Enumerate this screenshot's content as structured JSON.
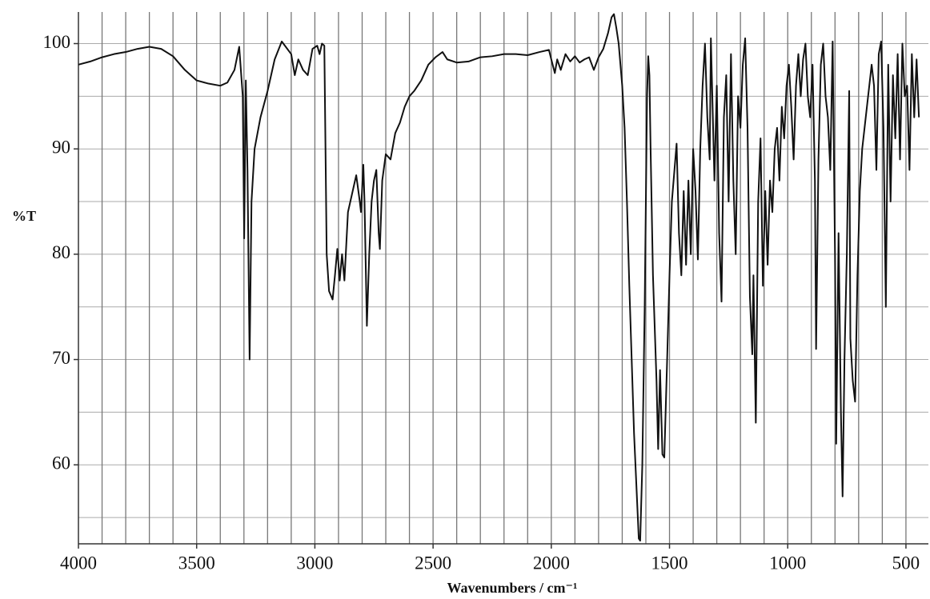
{
  "chart_data": {
    "type": "line",
    "color": "#111111",
    "x_label": "Wavenumbers / cm⁻¹",
    "y_label": "%T",
    "xlim": [
      4000,
      405
    ],
    "ylim": [
      52.5,
      103
    ],
    "xticks": [
      4000,
      3500,
      3000,
      2500,
      2000,
      1500,
      1000,
      500
    ],
    "yticks": [
      60,
      70,
      80,
      90,
      100
    ],
    "xgrid": [
      3900,
      3800,
      3700,
      3600,
      3500,
      3400,
      3300,
      3200,
      3100,
      3000,
      2900,
      2800,
      2700,
      2600,
      2500,
      2400,
      2300,
      2200,
      2100,
      2000,
      1900,
      1800,
      1700,
      1600,
      1500,
      1400,
      1300,
      1200,
      1100,
      1000,
      900,
      800,
      700,
      600,
      500
    ],
    "ygrid": [
      55,
      60,
      65,
      70,
      75,
      80,
      85,
      90,
      95,
      100
    ],
    "x": [
      4000,
      3950,
      3900,
      3850,
      3800,
      3750,
      3700,
      3650,
      3600,
      3550,
      3500,
      3450,
      3400,
      3370,
      3340,
      3320,
      3305,
      3299,
      3292,
      3285,
      3276,
      3268,
      3255,
      3230,
      3200,
      3170,
      3140,
      3100,
      3085,
      3070,
      3050,
      3030,
      3010,
      2990,
      2980,
      2970,
      2960,
      2955,
      2950,
      2940,
      2925,
      2915,
      2905,
      2895,
      2885,
      2875,
      2860,
      2840,
      2825,
      2810,
      2805,
      2795,
      2790,
      2780,
      2770,
      2760,
      2750,
      2740,
      2730,
      2725,
      2715,
      2700,
      2680,
      2660,
      2640,
      2620,
      2600,
      2580,
      2550,
      2520,
      2490,
      2460,
      2440,
      2400,
      2350,
      2300,
      2250,
      2200,
      2150,
      2100,
      2050,
      2010,
      2000,
      1985,
      1975,
      1960,
      1940,
      1920,
      1900,
      1880,
      1860,
      1840,
      1820,
      1800,
      1780,
      1760,
      1745,
      1735,
      1725,
      1715,
      1700,
      1690,
      1680,
      1670,
      1660,
      1650,
      1640,
      1630,
      1624,
      1615,
      1605,
      1595,
      1590,
      1585,
      1580,
      1570,
      1555,
      1548,
      1540,
      1530,
      1522,
      1510,
      1500,
      1490,
      1470,
      1460,
      1450,
      1440,
      1430,
      1420,
      1410,
      1400,
      1390,
      1380,
      1370,
      1360,
      1350,
      1340,
      1330,
      1325,
      1310,
      1300,
      1290,
      1280,
      1270,
      1260,
      1250,
      1240,
      1230,
      1220,
      1210,
      1200,
      1190,
      1180,
      1170,
      1160,
      1150,
      1145,
      1135,
      1125,
      1115,
      1105,
      1095,
      1085,
      1075,
      1065,
      1055,
      1045,
      1035,
      1025,
      1015,
      1005,
      995,
      985,
      975,
      965,
      955,
      945,
      935,
      925,
      915,
      905,
      895,
      885,
      880,
      870,
      860,
      850,
      840,
      830,
      820,
      810,
      800,
      795,
      785,
      775,
      768,
      760,
      750,
      740,
      735,
      725,
      715,
      705,
      695,
      685,
      675,
      665,
      655,
      645,
      635,
      625,
      615,
      605,
      595,
      585,
      575,
      565,
      555,
      545,
      535,
      525,
      515,
      505,
      495,
      485,
      475,
      465,
      455,
      445
    ],
    "values": [
      98,
      98.3,
      98.7,
      99,
      99.2,
      99.5,
      99.7,
      99.5,
      98.8,
      97.5,
      96.5,
      96.2,
      96,
      96.3,
      97.5,
      99.7,
      95,
      81.5,
      96.5,
      88,
      70,
      85,
      90,
      93,
      95.5,
      98.5,
      100.2,
      99,
      97,
      98.5,
      97.5,
      97,
      99.5,
      99.8,
      99,
      100,
      99.8,
      90,
      80,
      76.5,
      75.7,
      78,
      80.5,
      77.5,
      80,
      77.5,
      84,
      86,
      87.5,
      85,
      84,
      88.5,
      85,
      73.2,
      80,
      85,
      87,
      88,
      82,
      80.5,
      87,
      89.5,
      89,
      91.5,
      92.5,
      94,
      95,
      95.5,
      96.5,
      98,
      98.7,
      99.2,
      98.5,
      98.2,
      98.3,
      98.7,
      98.8,
      99,
      99,
      98.9,
      99.2,
      99.4,
      98.5,
      97.2,
      98.5,
      97.5,
      99,
      98.3,
      98.8,
      98.2,
      98.5,
      98.7,
      97.5,
      98.7,
      99.5,
      101,
      102.5,
      102.8,
      101.5,
      100,
      96,
      92,
      85,
      77,
      70,
      63,
      58,
      53,
      52.8,
      60,
      75,
      95,
      98.8,
      97,
      90,
      78,
      68,
      61.5,
      69,
      61,
      60.7,
      70,
      78,
      85,
      90.5,
      82,
      78,
      86,
      79,
      87,
      80,
      90,
      86,
      79.5,
      90,
      96,
      100,
      93,
      89,
      100.5,
      87,
      96,
      82,
      75.5,
      93,
      97,
      85,
      99,
      87,
      80,
      95,
      92,
      98,
      100.5,
      92,
      76,
      70.5,
      78,
      64,
      85,
      91,
      77,
      86,
      79,
      87,
      84,
      90,
      92,
      87,
      94,
      91,
      96,
      98,
      94,
      89,
      96,
      99,
      95,
      98.5,
      100,
      95,
      93,
      98,
      87,
      71,
      89,
      98,
      100,
      95,
      93,
      88,
      100.2,
      80,
      62,
      82,
      65,
      57,
      70,
      80,
      95.5,
      72,
      68,
      66,
      78,
      86,
      90,
      92,
      94,
      96,
      98,
      96,
      88,
      99,
      100.2,
      92,
      75,
      98,
      85,
      97,
      91,
      99,
      89,
      100,
      95,
      96,
      88,
      99,
      93,
      98.5,
      93
    ]
  }
}
